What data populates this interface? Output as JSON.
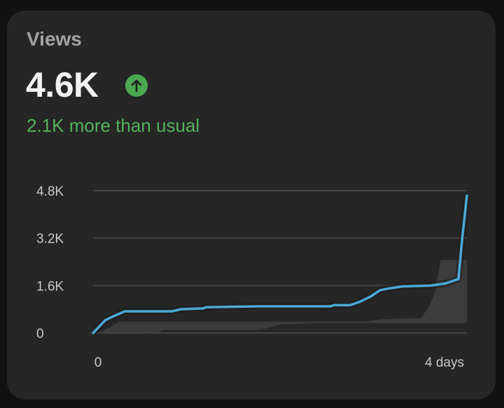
{
  "card": {
    "title": "Views",
    "value": "4.6K",
    "trend_icon": "arrow-up-circle-icon",
    "comparison": "2.1K more than usual",
    "colors": {
      "positive": "#4aa84f",
      "line": "#4aaad6",
      "band": "#3c3c3c"
    }
  },
  "chart_data": {
    "type": "line",
    "title": "",
    "xlabel": "",
    "ylabel": "",
    "x_unit": "days",
    "y_unit": "K views",
    "xlim": [
      0,
      4
    ],
    "ylim": [
      0,
      4.8
    ],
    "y_ticks": [
      {
        "value": 0,
        "label": "0"
      },
      {
        "value": 1.6,
        "label": "1.6K"
      },
      {
        "value": 3.2,
        "label": "3.2K"
      },
      {
        "value": 4.8,
        "label": "4.8K"
      }
    ],
    "x_ticks": [
      {
        "value": 0,
        "label": "0"
      },
      {
        "value": 4,
        "label": "4 days"
      }
    ],
    "grid": true,
    "series": [
      {
        "points": [
          [
            0,
            0
          ],
          [
            0.13,
            0.43
          ],
          [
            0.2,
            0.54
          ],
          [
            0.34,
            0.73
          ],
          [
            0.84,
            0.73
          ],
          [
            0.94,
            0.8
          ],
          [
            1.18,
            0.83
          ],
          [
            1.21,
            0.87
          ],
          [
            1.78,
            0.9
          ],
          [
            2.54,
            0.9
          ],
          [
            2.58,
            0.94
          ],
          [
            2.75,
            0.94
          ],
          [
            2.86,
            1.06
          ],
          [
            2.97,
            1.23
          ],
          [
            3.07,
            1.44
          ],
          [
            3.16,
            1.5
          ],
          [
            3.31,
            1.57
          ],
          [
            3.61,
            1.6
          ],
          [
            3.77,
            1.67
          ],
          [
            3.91,
            1.82
          ],
          [
            3.95,
            3.2
          ],
          [
            4.0,
            4.63
          ]
        ]
      }
    ],
    "usual_range": {
      "upper": [
        [
          0,
          0
        ],
        [
          0.1,
          0.05
        ],
        [
          0.28,
          0.38
        ],
        [
          2.9,
          0.38
        ],
        [
          3.1,
          0.47
        ],
        [
          3.5,
          0.5
        ],
        [
          3.58,
          0.8
        ],
        [
          3.65,
          1.3
        ],
        [
          3.72,
          2.46
        ],
        [
          4.0,
          2.46
        ]
      ],
      "lower": [
        [
          0,
          0
        ],
        [
          0.7,
          0.02
        ],
        [
          0.75,
          0.1
        ],
        [
          1.77,
          0.1
        ],
        [
          1.87,
          0.17
        ],
        [
          2.0,
          0.28
        ],
        [
          2.35,
          0.33
        ],
        [
          4.0,
          0.33
        ]
      ]
    }
  }
}
